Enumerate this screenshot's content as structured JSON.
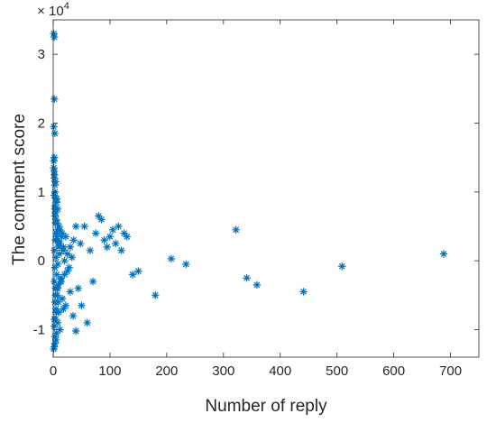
{
  "chart_data": {
    "type": "scatter",
    "xlabel": "Number of reply",
    "ylabel": "The comment score",
    "y_exponent_label": "× 10",
    "y_exponent_power": "4",
    "xlim": [
      0,
      750
    ],
    "ylim": [
      -1.4,
      3.5
    ],
    "y_scale_factor": 10000,
    "xticks": [
      0,
      100,
      200,
      300,
      400,
      500,
      600,
      700
    ],
    "yticks": [
      -1,
      0,
      1,
      2,
      3
    ],
    "xtick_labels": [
      "0",
      "100",
      "200",
      "300",
      "400",
      "500",
      "600",
      "700"
    ],
    "ytick_labels": [
      "-1",
      "0",
      "1",
      "2",
      "3"
    ],
    "marker": "asterisk",
    "grid": false,
    "legend": "none",
    "colors": {
      "series": "#0072BD",
      "axes": "#262626",
      "background": "#ffffff"
    },
    "series": [
      {
        "x": [
          1,
          2,
          2,
          1,
          3,
          2,
          1,
          2,
          2,
          3,
          4,
          3,
          5,
          2,
          6,
          3,
          4,
          8,
          5,
          7,
          10,
          3,
          12,
          6,
          15,
          4,
          9,
          18,
          2,
          11,
          5,
          20,
          8,
          3,
          25,
          6,
          14,
          2,
          9,
          4,
          30,
          7,
          16,
          3,
          22,
          5,
          10,
          35,
          4,
          8,
          2,
          12,
          6,
          40,
          3,
          18,
          5,
          9,
          2,
          7,
          4,
          13,
          3,
          6,
          1,
          1,
          2,
          3,
          2,
          4,
          5,
          6,
          7,
          8,
          9,
          10,
          12,
          14,
          16,
          18,
          20,
          22,
          25,
          28,
          30,
          33,
          36,
          40,
          44,
          48,
          50,
          55,
          60,
          65,
          70,
          75,
          80,
          85,
          90,
          95,
          100,
          105,
          110,
          115,
          120,
          125,
          130,
          140,
          150,
          180,
          208,
          234,
          322,
          341,
          359,
          441,
          509,
          688
        ],
        "y": [
          3.3,
          3.25,
          2.35,
          1.95,
          1.85,
          1.5,
          1.45,
          1.3,
          1.2,
          1.1,
          1.15,
          1.0,
          0.9,
          0.95,
          0.85,
          0.8,
          0.7,
          0.75,
          0.6,
          0.55,
          0.5,
          0.65,
          0.45,
          0.4,
          0.35,
          0.3,
          0.25,
          0.2,
          0.15,
          0.1,
          0.05,
          0.0,
          -0.05,
          -0.1,
          -0.15,
          -0.2,
          -0.25,
          -0.3,
          -0.35,
          -0.4,
          -0.45,
          -0.5,
          -0.55,
          -0.6,
          -0.65,
          -0.7,
          -0.75,
          -0.8,
          -0.85,
          -0.9,
          -0.95,
          -1.0,
          -1.05,
          -1.02,
          -1.1,
          -0.7,
          -1.15,
          -0.6,
          -1.25,
          -0.4,
          -0.5,
          -0.3,
          -1.2,
          0.9,
          -1.28,
          1.35,
          1.25,
          0.75,
          -0.85,
          0.55,
          -0.75,
          0.35,
          0.45,
          -0.4,
          0.3,
          0.2,
          0.25,
          -0.3,
          0.4,
          0.15,
          -0.2,
          0.35,
          0.1,
          -0.1,
          0.2,
          0.05,
          0.3,
          0.5,
          -0.4,
          0.25,
          -0.65,
          0.5,
          -0.9,
          0.15,
          -0.3,
          0.4,
          0.65,
          0.6,
          0.3,
          0.2,
          0.35,
          0.45,
          0.25,
          0.5,
          0.15,
          0.4,
          0.35,
          -0.2,
          -0.15,
          -0.5,
          0.03,
          -0.05,
          0.45,
          -0.25,
          -0.35,
          -0.45,
          -0.08,
          0.1
        ]
      }
    ]
  }
}
